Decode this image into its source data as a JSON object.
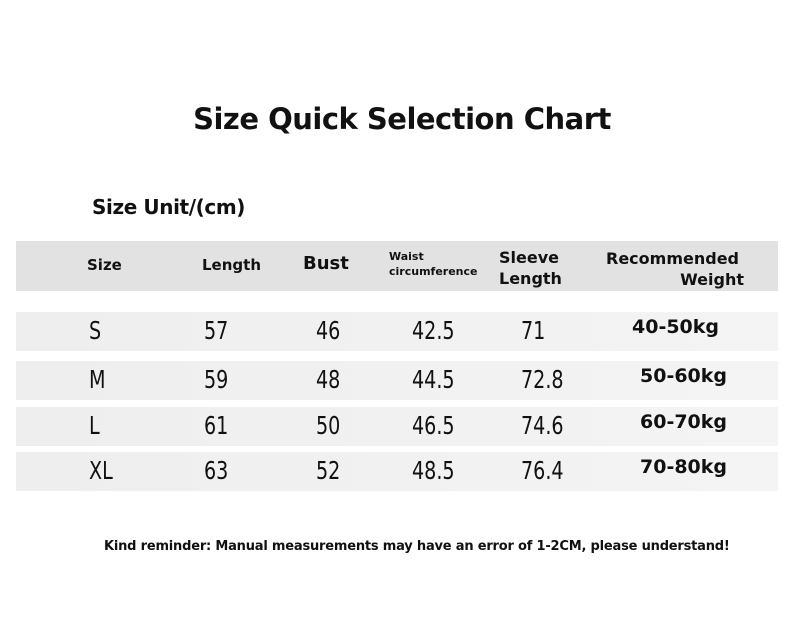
{
  "title": "Size Quick Selection Chart",
  "unit": "Size Unit/(cm)",
  "headers": {
    "size": "Size",
    "length": "Length",
    "bust": "Bust",
    "waist1": "Waist",
    "waist2": "circumference",
    "sleeve1": "Sleeve",
    "sleeve2": "Length",
    "weight1": "Recommended",
    "weight2": "Weight"
  },
  "rows": [
    {
      "size": "S",
      "length": "57",
      "bust": "46",
      "waist": "42.5",
      "sleeve": "71",
      "weight": "40-50kg"
    },
    {
      "size": "M",
      "length": "59",
      "bust": "48",
      "waist": "44.5",
      "sleeve": "72.8",
      "weight": "50-60kg"
    },
    {
      "size": "L",
      "length": "61",
      "bust": "50",
      "waist": "46.5",
      "sleeve": "74.6",
      "weight": "60-70kg"
    },
    {
      "size": "XL",
      "length": "63",
      "bust": "52",
      "waist": "48.5",
      "sleeve": "76.4",
      "weight": "70-80kg"
    }
  ],
  "note": "Kind reminder: Manual measurements may have an error of 1-2CM, please understand!"
}
